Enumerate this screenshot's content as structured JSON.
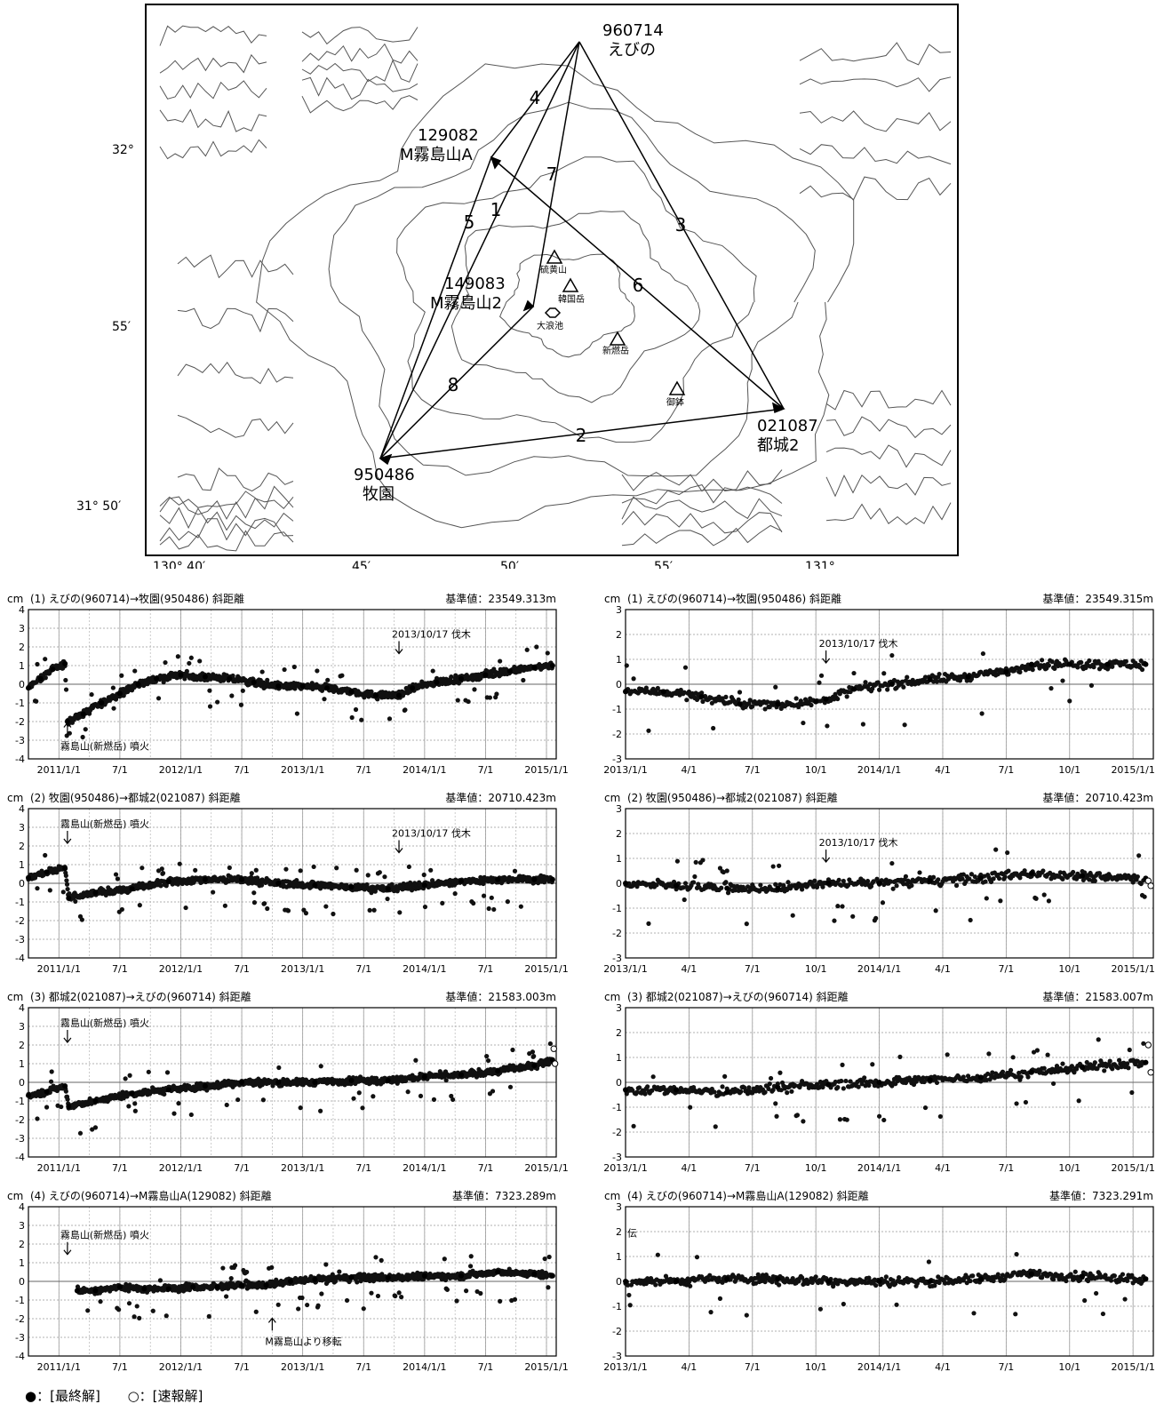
{
  "map": {
    "lat_labels": [
      "32°",
      "55′",
      "31° 50′"
    ],
    "lon_labels": [
      "130° 40′",
      "45′",
      "50′",
      "55′",
      "131°"
    ],
    "stations": [
      {
        "id": "960714",
        "name": "えびの"
      },
      {
        "id": "129082",
        "name": "M霧島山A"
      },
      {
        "id": "149083",
        "name": "M霧島山2"
      },
      {
        "id": "021087",
        "name": "都城2"
      },
      {
        "id": "950486",
        "name": "牧園"
      }
    ],
    "baseline_numbers": [
      "1",
      "2",
      "3",
      "4",
      "5",
      "6",
      "7",
      "8"
    ],
    "volcanoes": [
      "硫黄山",
      "韓国岳",
      "大浪池",
      "新燃岳",
      "御鉢"
    ]
  },
  "chart_data": [
    {
      "type": "scatter",
      "title": "(1) えびの(960714)→牧園(950486) 斜距離",
      "ref": "基準値：23549.313m",
      "ylabel": "cm",
      "ylim": [
        -4,
        4
      ],
      "yticks": [
        "4",
        "3",
        "2",
        "1",
        "0",
        "-1",
        "-2",
        "-3",
        "-4"
      ],
      "xlim": [
        2010.75,
        2015.08
      ],
      "xticks": [
        {
          "v": 2011.0,
          "t": "2011/1/1"
        },
        {
          "v": 2011.5,
          "t": "7/1"
        },
        {
          "v": 2012.0,
          "t": "2012/1/1"
        },
        {
          "v": 2012.5,
          "t": "7/1"
        },
        {
          "v": 2013.0,
          "t": "2013/1/1"
        },
        {
          "v": 2013.5,
          "t": "7/1"
        },
        {
          "v": 2014.0,
          "t": "2014/1/1"
        },
        {
          "v": 2014.5,
          "t": "7/1"
        },
        {
          "v": 2015.0,
          "t": "2015/1/1"
        }
      ],
      "annotations": [
        {
          "text": "2013/10/17 伐木",
          "x": 2013.79,
          "y": 2.5,
          "arrow": "down"
        },
        {
          "text": "霧島山(新燃岳) 噴火",
          "x": 2011.07,
          "y": -3.5,
          "arrow": "up"
        }
      ],
      "series": [
        {
          "marker": "filled",
          "x": [
            2010.75,
            2010.85,
            2010.95,
            2011.05,
            2011.07,
            2011.2,
            2011.35,
            2011.5,
            2011.65,
            2011.8,
            2012.0,
            2012.2,
            2012.4,
            2012.6,
            2012.8,
            2013.0,
            2013.2,
            2013.4,
            2013.6,
            2013.79,
            2013.9,
            2014.1,
            2014.3,
            2014.5,
            2014.7,
            2014.9,
            2015.05
          ],
          "y": [
            -0.2,
            0.3,
            0.8,
            1.1,
            -2.0,
            -1.6,
            -1.0,
            -0.5,
            0.0,
            0.3,
            0.5,
            0.4,
            0.3,
            0.1,
            -0.1,
            -0.1,
            -0.2,
            -0.4,
            -0.6,
            -0.6,
            -0.2,
            0.1,
            0.3,
            0.5,
            0.7,
            0.9,
            1.0
          ]
        }
      ]
    },
    {
      "type": "scatter",
      "title": "(1) えびの(960714)→牧園(950486) 斜距離",
      "ref": "基準値：23549.315m",
      "ylabel": "cm",
      "ylim": [
        -3,
        3
      ],
      "yticks": [
        "3",
        "2",
        "1",
        "0",
        "-1",
        "-2",
        "-3"
      ],
      "xlim": [
        2013.0,
        2015.08
      ],
      "xticks": [
        {
          "v": 2013.0,
          "t": "2013/1/1"
        },
        {
          "v": 2013.25,
          "t": "4/1"
        },
        {
          "v": 2013.5,
          "t": "7/1"
        },
        {
          "v": 2013.75,
          "t": "10/1"
        },
        {
          "v": 2014.0,
          "t": "2014/1/1"
        },
        {
          "v": 2014.25,
          "t": "4/1"
        },
        {
          "v": 2014.5,
          "t": "7/1"
        },
        {
          "v": 2014.75,
          "t": "10/1"
        },
        {
          "v": 2015.0,
          "t": "2015/1/1"
        }
      ],
      "annotations": [
        {
          "text": "2013/10/17 伐木",
          "x": 2013.79,
          "y": 1.5,
          "arrow": "down"
        }
      ],
      "series": [
        {
          "marker": "filled",
          "x": [
            2013.0,
            2013.15,
            2013.3,
            2013.45,
            2013.6,
            2013.75,
            2013.79,
            2013.9,
            2014.05,
            2014.2,
            2014.35,
            2014.5,
            2014.6,
            2014.75,
            2014.9,
            2015.05
          ],
          "y": [
            -0.3,
            -0.3,
            -0.5,
            -0.8,
            -0.8,
            -0.7,
            -0.6,
            -0.2,
            0.0,
            0.2,
            0.3,
            0.5,
            0.8,
            0.8,
            0.8,
            0.8
          ]
        }
      ]
    },
    {
      "type": "scatter",
      "title": "(2) 牧園(950486)→都城2(021087) 斜距離",
      "ref": "基準値：20710.423m",
      "ylabel": "cm",
      "ylim": [
        -4,
        4
      ],
      "yticks": [
        "4",
        "3",
        "2",
        "1",
        "0",
        "-1",
        "-2",
        "-3",
        "-4"
      ],
      "xlim": [
        2010.75,
        2015.08
      ],
      "xticks": [
        {
          "v": 2011.0,
          "t": "2011/1/1"
        },
        {
          "v": 2011.5,
          "t": "7/1"
        },
        {
          "v": 2012.0,
          "t": "2012/1/1"
        },
        {
          "v": 2012.5,
          "t": "7/1"
        },
        {
          "v": 2013.0,
          "t": "2013/1/1"
        },
        {
          "v": 2013.5,
          "t": "7/1"
        },
        {
          "v": 2014.0,
          "t": "2014/1/1"
        },
        {
          "v": 2014.5,
          "t": "7/1"
        },
        {
          "v": 2015.0,
          "t": "2015/1/1"
        }
      ],
      "annotations": [
        {
          "text": "霧島山(新燃岳) 噴火",
          "x": 2011.07,
          "y": 3.0,
          "arrow": "down"
        },
        {
          "text": "2013/10/17 伐木",
          "x": 2013.79,
          "y": 2.5,
          "arrow": "down"
        }
      ],
      "series": [
        {
          "marker": "filled",
          "x": [
            2010.75,
            2010.9,
            2011.05,
            2011.08,
            2011.3,
            2011.6,
            2011.9,
            2012.2,
            2012.5,
            2012.8,
            2013.1,
            2013.4,
            2013.7,
            2014.0,
            2014.3,
            2014.6,
            2014.9,
            2015.05
          ],
          "y": [
            0.3,
            0.6,
            0.8,
            -0.8,
            -0.5,
            -0.3,
            0.1,
            0.2,
            0.2,
            0.0,
            -0.1,
            -0.2,
            -0.3,
            -0.1,
            0.1,
            0.2,
            0.2,
            0.2
          ]
        }
      ]
    },
    {
      "type": "scatter",
      "title": "(2) 牧園(950486)→都城2(021087) 斜距離",
      "ref": "基準値：20710.423m",
      "ylabel": "cm",
      "ylim": [
        -3,
        3
      ],
      "yticks": [
        "3",
        "2",
        "1",
        "0",
        "-1",
        "-2",
        "-3"
      ],
      "xlim": [
        2013.0,
        2015.08
      ],
      "xticks": [
        {
          "v": 2013.0,
          "t": "2013/1/1"
        },
        {
          "v": 2013.25,
          "t": "4/1"
        },
        {
          "v": 2013.5,
          "t": "7/1"
        },
        {
          "v": 2013.75,
          "t": "10/1"
        },
        {
          "v": 2014.0,
          "t": "2014/1/1"
        },
        {
          "v": 2014.25,
          "t": "4/1"
        },
        {
          "v": 2014.5,
          "t": "7/1"
        },
        {
          "v": 2014.75,
          "t": "10/1"
        },
        {
          "v": 2015.0,
          "t": "2015/1/1"
        }
      ],
      "annotations": [
        {
          "text": "2013/10/17 伐木",
          "x": 2013.79,
          "y": 1.5,
          "arrow": "down"
        }
      ],
      "series": [
        {
          "marker": "filled",
          "x": [
            2013.0,
            2013.2,
            2013.4,
            2013.6,
            2013.8,
            2014.0,
            2014.2,
            2014.4,
            2014.6,
            2014.8,
            2015.05
          ],
          "y": [
            0.0,
            -0.1,
            -0.2,
            -0.2,
            0.0,
            0.0,
            0.1,
            0.2,
            0.4,
            0.3,
            0.2
          ]
        },
        {
          "marker": "open",
          "x": [
            2015.06,
            2015.07
          ],
          "y": [
            0.1,
            -0.1
          ]
        }
      ]
    },
    {
      "type": "scatter",
      "title": "(3) 都城2(021087)→えびの(960714) 斜距離",
      "ref": "基準値：21583.003m",
      "ylabel": "cm",
      "ylim": [
        -4,
        4
      ],
      "yticks": [
        "4",
        "3",
        "2",
        "1",
        "0",
        "-1",
        "-2",
        "-3",
        "-4"
      ],
      "xlim": [
        2010.75,
        2015.08
      ],
      "xticks": [
        {
          "v": 2011.0,
          "t": "2011/1/1"
        },
        {
          "v": 2011.5,
          "t": "7/1"
        },
        {
          "v": 2012.0,
          "t": "2012/1/1"
        },
        {
          "v": 2012.5,
          "t": "7/1"
        },
        {
          "v": 2013.0,
          "t": "2013/1/1"
        },
        {
          "v": 2013.5,
          "t": "7/1"
        },
        {
          "v": 2014.0,
          "t": "2014/1/1"
        },
        {
          "v": 2014.5,
          "t": "7/1"
        },
        {
          "v": 2015.0,
          "t": "2015/1/1"
        }
      ],
      "annotations": [
        {
          "text": "霧島山(新燃岳) 噴火",
          "x": 2011.07,
          "y": 3.0,
          "arrow": "down"
        }
      ],
      "series": [
        {
          "marker": "filled",
          "x": [
            2010.75,
            2010.9,
            2011.05,
            2011.08,
            2011.3,
            2011.6,
            2011.9,
            2012.2,
            2012.5,
            2012.8,
            2013.1,
            2013.4,
            2013.7,
            2014.0,
            2014.3,
            2014.6,
            2014.9,
            2015.05
          ],
          "y": [
            -0.7,
            -0.5,
            -0.2,
            -1.3,
            -1.0,
            -0.6,
            -0.4,
            -0.2,
            0.0,
            0.0,
            0.0,
            0.1,
            0.1,
            0.3,
            0.4,
            0.6,
            0.9,
            1.2
          ]
        },
        {
          "marker": "open",
          "x": [
            2015.06,
            2015.07
          ],
          "y": [
            1.8,
            1.0
          ]
        }
      ]
    },
    {
      "type": "scatter",
      "title": "(3) 都城2(021087)→えびの(960714) 斜距離",
      "ref": "基準値：21583.007m",
      "ylabel": "cm",
      "ylim": [
        -3,
        3
      ],
      "yticks": [
        "3",
        "2",
        "1",
        "0",
        "-1",
        "-2",
        "-3"
      ],
      "xlim": [
        2013.0,
        2015.08
      ],
      "xticks": [
        {
          "v": 2013.0,
          "t": "2013/1/1"
        },
        {
          "v": 2013.25,
          "t": "4/1"
        },
        {
          "v": 2013.5,
          "t": "7/1"
        },
        {
          "v": 2013.75,
          "t": "10/1"
        },
        {
          "v": 2014.0,
          "t": "2014/1/1"
        },
        {
          "v": 2014.25,
          "t": "4/1"
        },
        {
          "v": 2014.5,
          "t": "7/1"
        },
        {
          "v": 2014.75,
          "t": "10/1"
        },
        {
          "v": 2015.0,
          "t": "2015/1/1"
        }
      ],
      "annotations": [],
      "series": [
        {
          "marker": "filled",
          "x": [
            2013.0,
            2013.2,
            2013.4,
            2013.6,
            2013.8,
            2014.0,
            2014.2,
            2014.4,
            2014.6,
            2014.8,
            2015.05
          ],
          "y": [
            -0.3,
            -0.3,
            -0.4,
            -0.2,
            -0.1,
            0.0,
            0.1,
            0.2,
            0.4,
            0.6,
            0.8
          ]
        },
        {
          "marker": "open",
          "x": [
            2015.06,
            2015.07
          ],
          "y": [
            1.5,
            0.4
          ]
        }
      ]
    },
    {
      "type": "scatter",
      "title": "(4) えびの(960714)→M霧島山A(129082) 斜距離",
      "ref": "基準値：7323.289m",
      "ylabel": "cm",
      "ylim": [
        -4,
        4
      ],
      "yticks": [
        "4",
        "3",
        "2",
        "1",
        "0",
        "-1",
        "-2",
        "-3",
        "-4"
      ],
      "xlim": [
        2010.75,
        2015.08
      ],
      "xticks": [
        {
          "v": 2011.0,
          "t": "2011/1/1"
        },
        {
          "v": 2011.5,
          "t": "7/1"
        },
        {
          "v": 2012.0,
          "t": "2012/1/1"
        },
        {
          "v": 2012.5,
          "t": "7/1"
        },
        {
          "v": 2013.0,
          "t": "2013/1/1"
        },
        {
          "v": 2013.5,
          "t": "7/1"
        },
        {
          "v": 2014.0,
          "t": "2014/1/1"
        },
        {
          "v": 2014.5,
          "t": "7/1"
        },
        {
          "v": 2015.0,
          "t": "2015/1/1"
        }
      ],
      "annotations": [
        {
          "text": "霧島山(新燃岳) 噴火",
          "x": 2011.07,
          "y": 2.3,
          "arrow": "down"
        },
        {
          "text": "M霧島山より移転",
          "x": 2012.75,
          "y": -3.4,
          "arrow": "up"
        }
      ],
      "series": [
        {
          "marker": "filled",
          "x": [
            2011.15,
            2011.3,
            2011.5,
            2011.7,
            2011.9,
            2012.1,
            2012.3,
            2012.5,
            2012.7,
            2012.9,
            2013.1,
            2013.4,
            2013.7,
            2014.0,
            2014.3,
            2014.6,
            2014.9,
            2015.05
          ],
          "y": [
            -0.5,
            -0.5,
            -0.3,
            -0.4,
            -0.4,
            -0.3,
            -0.3,
            -0.2,
            -0.2,
            0.0,
            0.1,
            0.2,
            0.2,
            0.3,
            0.3,
            0.5,
            0.4,
            0.3
          ]
        }
      ]
    },
    {
      "type": "scatter",
      "title": "(4) えびの(960714)→M霧島山A(129082) 斜距離",
      "ref": "基準値：7323.291m",
      "ylabel": "cm",
      "ylim": [
        -3,
        3
      ],
      "yticks": [
        "3",
        "2",
        "1",
        "0",
        "-1",
        "-2",
        "-3"
      ],
      "xlim": [
        2013.0,
        2015.08
      ],
      "xticks": [
        {
          "v": 2013.0,
          "t": "2013/1/1"
        },
        {
          "v": 2013.25,
          "t": "4/1"
        },
        {
          "v": 2013.5,
          "t": "7/1"
        },
        {
          "v": 2013.75,
          "t": "10/1"
        },
        {
          "v": 2014.0,
          "t": "2014/1/1"
        },
        {
          "v": 2014.25,
          "t": "4/1"
        },
        {
          "v": 2014.5,
          "t": "7/1"
        },
        {
          "v": 2014.75,
          "t": "10/1"
        },
        {
          "v": 2015.0,
          "t": "2015/1/1"
        }
      ],
      "annotations": [
        {
          "text": "伝",
          "x": 2013.0,
          "y": 1.8,
          "arrow": "none"
        }
      ],
      "series": [
        {
          "marker": "filled",
          "x": [
            2013.0,
            2013.2,
            2013.4,
            2013.6,
            2013.8,
            2014.0,
            2014.2,
            2014.4,
            2014.6,
            2014.8,
            2015.05
          ],
          "y": [
            0.0,
            0.0,
            0.1,
            0.1,
            0.0,
            0.0,
            0.0,
            0.1,
            0.3,
            0.2,
            0.1
          ]
        }
      ]
    }
  ],
  "legend": {
    "filled": "●：[最終解]",
    "open": "○：[速報解]"
  }
}
